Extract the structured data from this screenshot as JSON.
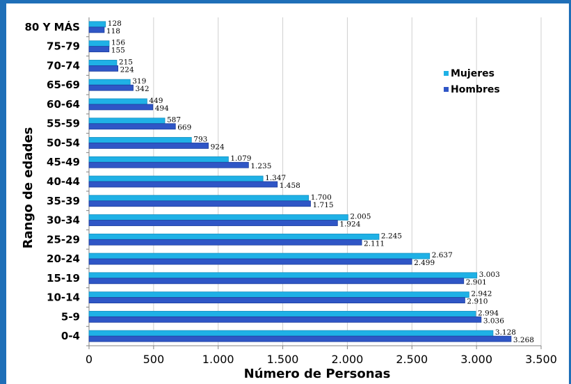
{
  "chart_data": {
    "type": "bar",
    "orientation": "horizontal",
    "categories": [
      "80 Y MÁS",
      "75-79",
      "70-74",
      "65-69",
      "60-64",
      "55-59",
      "50-54",
      "45-49",
      "40-44",
      "35-39",
      "30-34",
      "25-29",
      "20-24",
      "15-19",
      "10-14",
      "5-9",
      "0-4"
    ],
    "series": [
      {
        "name": "Mujeres",
        "color": "#1fb1e6",
        "values": [
          128,
          156,
          215,
          319,
          449,
          587,
          793,
          1079,
          1347,
          1700,
          2005,
          2245,
          2637,
          3003,
          2942,
          2994,
          3128
        ],
        "labels": [
          "128",
          "156",
          "215",
          "319",
          "449",
          "587",
          "793",
          "1.079",
          "1.347",
          "1.700",
          "2.005",
          "2.245",
          "2.637",
          "3.003",
          "2.942",
          "2.994",
          "3.128"
        ]
      },
      {
        "name": "Hombres",
        "color": "#2f56c6",
        "values": [
          118,
          155,
          224,
          342,
          494,
          669,
          924,
          1235,
          1458,
          1715,
          1924,
          2111,
          2499,
          2901,
          2910,
          3036,
          3268
        ],
        "labels": [
          "118",
          "155",
          "224",
          "342",
          "494",
          "669",
          "924",
          "1.235",
          "1.458",
          "1.715",
          "1.924",
          "2.111",
          "2.499",
          "2.901",
          "2.910",
          "3.036",
          "3.268"
        ]
      }
    ],
    "xlabel": "Número de Personas",
    "ylabel": "Rango de edades",
    "xlim": [
      0,
      3500
    ],
    "xticks": [
      0,
      500,
      1000,
      1500,
      2000,
      2500,
      3000,
      3500
    ],
    "xtick_labels": [
      "0",
      "500",
      "1.000",
      "1.500",
      "2.000",
      "2.500",
      "3.000",
      "3.500"
    ],
    "grid": true,
    "legend_position": "top-right"
  }
}
